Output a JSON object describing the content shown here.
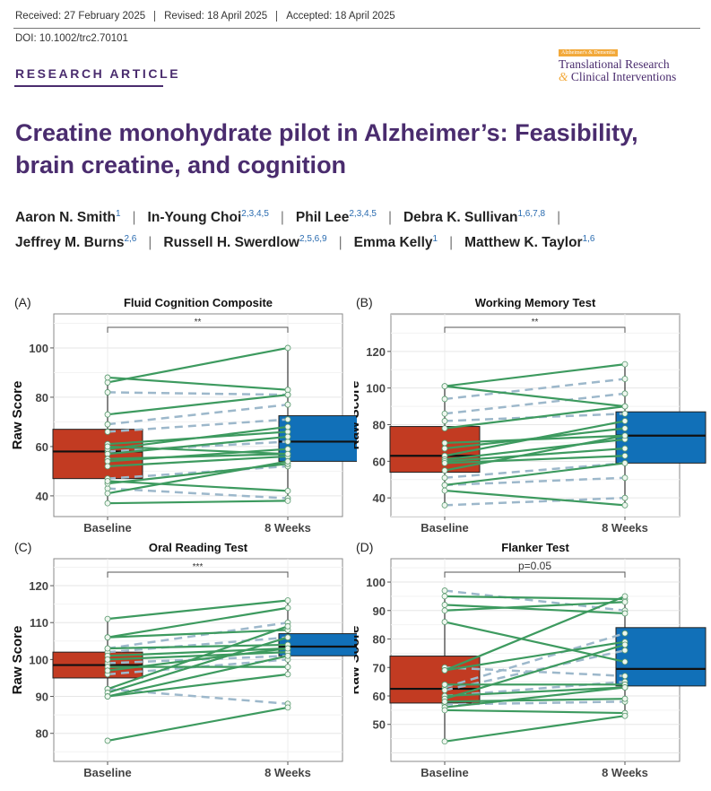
{
  "header": {
    "received": "Received: 27 February 2025",
    "revised": "Revised: 18 April 2025",
    "accepted": "Accepted: 18 April 2025",
    "doi": "DOI: 10.1002/trc2.70101",
    "section": "RESEARCH ARTICLE"
  },
  "journal_logo": {
    "tag": "Alzheimer's & Dementia",
    "line1": "Translational Research",
    "amp": "&",
    "line2": "Clinical Interventions"
  },
  "title": "Creatine monohydrate pilot in Alzheimer’s: Feasibility, brain creatine, and cognition",
  "authors_row1": [
    {
      "name": "Aaron N. Smith",
      "aff": "1"
    },
    {
      "name": "In-Young Choi",
      "aff": "2,3,4,5"
    },
    {
      "name": "Phil Lee",
      "aff": "2,3,4,5"
    },
    {
      "name": "Debra K. Sullivan",
      "aff": "1,6,7,8"
    }
  ],
  "authors_row2": [
    {
      "name": "Jeffrey M. Burns",
      "aff": "2,6"
    },
    {
      "name": "Russell H. Swerdlow",
      "aff": "2,5,6,9"
    },
    {
      "name": "Emma Kelly",
      "aff": "1"
    },
    {
      "name": "Matthew K. Taylor",
      "aff": "1,6"
    }
  ],
  "colors": {
    "baseline": "#c23b22",
    "weeks8": "#1170b8",
    "solid": "#3d9a5f",
    "dashed": "#9db8cb",
    "purple": "#4a2c6e"
  },
  "chart_data": [
    {
      "panel": "(A)",
      "type": "box+paired-line",
      "title": "Fluid Cognition Composite",
      "ylabel": "Raw Score",
      "categories": [
        "Baseline",
        "8 Weeks"
      ],
      "ylim": [
        31.6,
        113.8
      ],
      "yticks": [
        40,
        60,
        80,
        100
      ],
      "significance": "**",
      "boxes": [
        {
          "q1": 47,
          "median": 58,
          "q3": 67,
          "min": 37,
          "max": 88
        },
        {
          "q1": 54,
          "median": 62,
          "q3": 72.5,
          "min": 38,
          "max": 100
        }
      ],
      "solid_pairs": [
        [
          86,
          100
        ],
        [
          88,
          83
        ],
        [
          73,
          81
        ],
        [
          61,
          66
        ],
        [
          59,
          68
        ],
        [
          57,
          64
        ],
        [
          55,
          57
        ],
        [
          54,
          59
        ],
        [
          52,
          56
        ],
        [
          45,
          53
        ],
        [
          41,
          54
        ],
        [
          46,
          42
        ],
        [
          37,
          38
        ],
        [
          60,
          57
        ]
      ],
      "dashed_pairs": [
        [
          82,
          81
        ],
        [
          69,
          77
        ],
        [
          66,
          71
        ],
        [
          58,
          62
        ],
        [
          47,
          52
        ],
        [
          43,
          39
        ]
      ]
    },
    {
      "panel": "(B)",
      "type": "box+paired-line",
      "title": "Working Memory Test",
      "ylabel": "Raw Score",
      "categories": [
        "Baseline",
        "8 Weeks"
      ],
      "ylim": [
        29.8,
        140.5
      ],
      "yticks": [
        40,
        60,
        80,
        100,
        120
      ],
      "significance": "**",
      "boxes": [
        {
          "q1": 54,
          "median": 63,
          "q3": 79,
          "min": 36,
          "max": 101
        },
        {
          "q1": 59,
          "median": 74,
          "q3": 87,
          "min": 36,
          "max": 113
        }
      ],
      "solid_pairs": [
        [
          101,
          113
        ],
        [
          101,
          90
        ],
        [
          78,
          90
        ],
        [
          70,
          74
        ],
        [
          67,
          78
        ],
        [
          63,
          82
        ],
        [
          61,
          72
        ],
        [
          60,
          67
        ],
        [
          59,
          63
        ],
        [
          55,
          74
        ],
        [
          47,
          59
        ],
        [
          44,
          36
        ]
      ],
      "dashed_pairs": [
        [
          94,
          105
        ],
        [
          86,
          97
        ],
        [
          82,
          86
        ],
        [
          51,
          59
        ],
        [
          47,
          51
        ],
        [
          36,
          40
        ]
      ]
    },
    {
      "panel": "(C)",
      "type": "box+paired-line",
      "title": "Oral Reading Test",
      "ylabel": "Raw Score",
      "categories": [
        "Baseline",
        "8 Weeks"
      ],
      "ylim": [
        72.4,
        127.3
      ],
      "yticks": [
        80,
        90,
        100,
        110,
        120
      ],
      "significance": "***",
      "boxes": [
        {
          "q1": 95,
          "median": 98.5,
          "q3": 102,
          "min": 90,
          "max": 111
        },
        {
          "q1": 101,
          "median": 103.5,
          "q3": 107,
          "min": 96,
          "max": 116
        }
      ],
      "solid_pairs": [
        [
          111,
          116
        ],
        [
          106,
          114
        ],
        [
          106,
          108
        ],
        [
          103,
          104
        ],
        [
          101,
          103
        ],
        [
          100,
          102
        ],
        [
          98,
          98
        ],
        [
          97,
          103
        ],
        [
          92,
          109
        ],
        [
          91,
          106
        ],
        [
          90,
          96
        ],
        [
          90,
          101
        ],
        [
          78,
          87
        ]
      ],
      "dashed_pairs": [
        [
          103,
          110
        ],
        [
          102,
          106
        ],
        [
          99,
          101
        ],
        [
          96,
          100
        ],
        [
          92,
          88
        ]
      ]
    },
    {
      "panel": "(D)",
      "type": "box+paired-line",
      "title": "Flanker Test",
      "ylabel": "Raw Score",
      "categories": [
        "Baseline",
        "8 Weeks"
      ],
      "ylim": [
        37,
        108.2
      ],
      "yticks": [
        50,
        60,
        70,
        80,
        90,
        100
      ],
      "significance": "p=0.05",
      "boxes": [
        {
          "q1": 57.5,
          "median": 62.5,
          "q3": 74,
          "min": 44,
          "max": 97
        },
        {
          "q1": 63.5,
          "median": 69.5,
          "q3": 84,
          "min": 53,
          "max": 95
        }
      ],
      "solid_pairs": [
        [
          95,
          94
        ],
        [
          92,
          89
        ],
        [
          90,
          93
        ],
        [
          86,
          72
        ],
        [
          69,
          95
        ],
        [
          69,
          79
        ],
        [
          64,
          64
        ],
        [
          60,
          63
        ],
        [
          59,
          78
        ],
        [
          58,
          59
        ],
        [
          56,
          63
        ],
        [
          55,
          54
        ],
        [
          44,
          53
        ]
      ],
      "dashed_pairs": [
        [
          97,
          90
        ],
        [
          70,
          67
        ],
        [
          63,
          82
        ],
        [
          62,
          76
        ],
        [
          60,
          65
        ],
        [
          57,
          58
        ]
      ]
    }
  ]
}
